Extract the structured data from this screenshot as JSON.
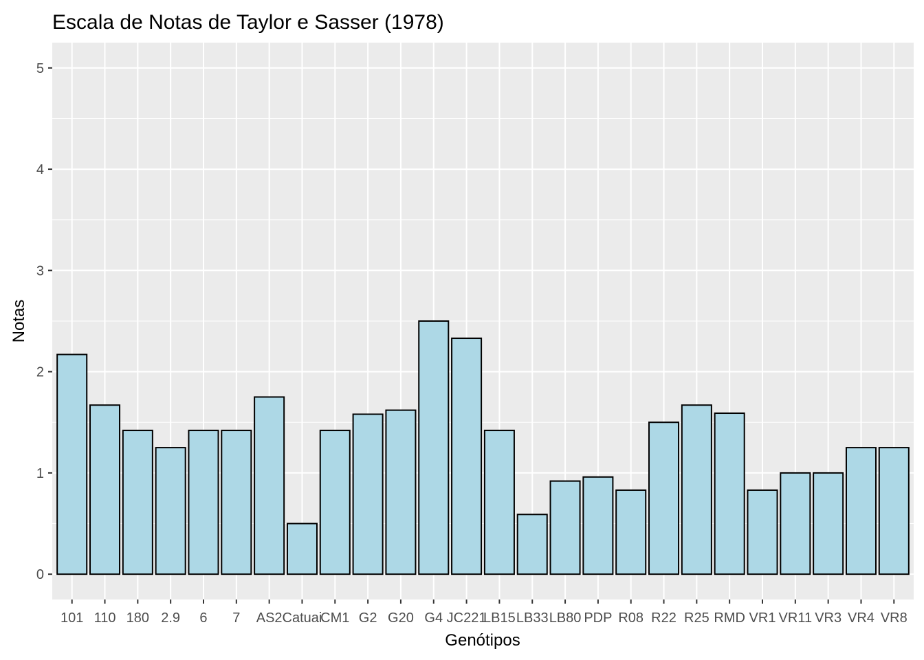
{
  "chart_data": {
    "type": "bar",
    "title": "Escala de Notas de Taylor e Sasser (1978)",
    "xlabel": "Genótipos",
    "ylabel": "Notas",
    "ylim": [
      -0.25,
      5.25
    ],
    "yticks": [
      0,
      1,
      2,
      3,
      4,
      5
    ],
    "grid": true,
    "categories": [
      "101",
      "110",
      "180",
      "2.9",
      "6",
      "7",
      "AS2",
      "Catuai",
      "CM1",
      "G2",
      "G20",
      "G4",
      "JC221",
      "LB15",
      "LB33",
      "LB80",
      "PDP",
      "R08",
      "R22",
      "R25",
      "RMD",
      "VR1",
      "VR11",
      "VR3",
      "VR4",
      "VR8"
    ],
    "values": [
      2.17,
      1.67,
      1.42,
      1.25,
      1.42,
      1.42,
      1.75,
      0.5,
      1.42,
      1.58,
      1.62,
      2.5,
      2.33,
      1.42,
      0.59,
      0.92,
      0.96,
      0.83,
      1.5,
      1.67,
      1.59,
      0.83,
      1.0,
      1.0,
      1.25,
      1.25
    ],
    "colors": {
      "bar_fill": "#add8e6",
      "bar_stroke": "#000000",
      "panel_background": "#ebebeb",
      "grid": "#ffffff"
    }
  }
}
